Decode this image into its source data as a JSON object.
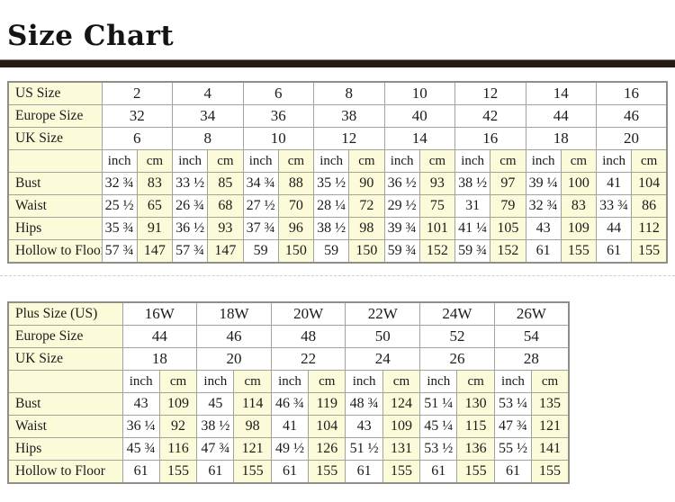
{
  "title": "Size Chart",
  "colors": {
    "header_bar": "#251a15",
    "label_and_cm_cell_background": "#fbfbd9",
    "inch_cell_background": "#ffffff",
    "grid_border": "#a3a39a",
    "outer_border": "#8f8f87",
    "text": "#1b1b1b"
  },
  "tables": [
    {
      "id": "standard",
      "size_rows": [
        {
          "label": "US Size",
          "values": [
            "2",
            "4",
            "6",
            "8",
            "10",
            "12",
            "14",
            "16"
          ]
        },
        {
          "label": "Europe Size",
          "values": [
            "32",
            "34",
            "36",
            "38",
            "40",
            "42",
            "44",
            "46"
          ]
        },
        {
          "label": "UK Size",
          "values": [
            "6",
            "8",
            "10",
            "12",
            "14",
            "16",
            "18",
            "20"
          ]
        }
      ],
      "unit_labels": {
        "inch": "inch",
        "cm": "cm"
      },
      "measure_rows": [
        {
          "label": "Bust",
          "inch": [
            "32 ¾",
            "33 ½",
            "34 ¾",
            "35 ½",
            "36 ½",
            "38 ½",
            "39 ¼",
            "41"
          ],
          "cm": [
            "83",
            "85",
            "88",
            "90",
            "93",
            "97",
            "100",
            "104"
          ]
        },
        {
          "label": "Waist",
          "inch": [
            "25 ½",
            "26 ¾",
            "27 ½",
            "28 ¼",
            "29 ½",
            "31",
            "32 ¾",
            "33 ¾"
          ],
          "cm": [
            "65",
            "68",
            "70",
            "72",
            "75",
            "79",
            "83",
            "86"
          ]
        },
        {
          "label": "Hips",
          "inch": [
            "35 ¾",
            "36 ½",
            "37 ¾",
            "38 ½",
            "39 ¾",
            "41 ¼",
            "43",
            "44"
          ],
          "cm": [
            "91",
            "93",
            "96",
            "98",
            "101",
            "105",
            "109",
            "112"
          ]
        },
        {
          "label": "Hollow to Floor",
          "inch": [
            "57 ¾",
            "57 ¾",
            "59",
            "59",
            "59 ¾",
            "59 ¾",
            "61",
            "61"
          ],
          "cm": [
            "147",
            "147",
            "150",
            "150",
            "152",
            "152",
            "155",
            "155"
          ]
        }
      ]
    },
    {
      "id": "plus",
      "size_rows": [
        {
          "label": "Plus Size (US)",
          "values": [
            "16W",
            "18W",
            "20W",
            "22W",
            "24W",
            "26W"
          ]
        },
        {
          "label": "Europe Size",
          "values": [
            "44",
            "46",
            "48",
            "50",
            "52",
            "54"
          ]
        },
        {
          "label": "UK Size",
          "values": [
            "18",
            "20",
            "22",
            "24",
            "26",
            "28"
          ]
        }
      ],
      "unit_labels": {
        "inch": "inch",
        "cm": "cm"
      },
      "measure_rows": [
        {
          "label": "Bust",
          "inch": [
            "43",
            "45",
            "46 ¾",
            "48 ¾",
            "51 ¼",
            "53 ¼"
          ],
          "cm": [
            "109",
            "114",
            "119",
            "124",
            "130",
            "135"
          ]
        },
        {
          "label": "Waist",
          "inch": [
            "36 ¼",
            "38 ½",
            "41",
            "43",
            "45 ¼",
            "47 ¾"
          ],
          "cm": [
            "92",
            "98",
            "104",
            "109",
            "115",
            "121"
          ]
        },
        {
          "label": "Hips",
          "inch": [
            "45 ¾",
            "47 ¾",
            "49 ½",
            "51 ½",
            "53 ½",
            "55 ½"
          ],
          "cm": [
            "116",
            "121",
            "126",
            "131",
            "136",
            "141"
          ]
        },
        {
          "label": "Hollow to Floor",
          "inch": [
            "61",
            "61",
            "61",
            "61",
            "61",
            "61"
          ],
          "cm": [
            "155",
            "155",
            "155",
            "155",
            "155",
            "155"
          ]
        }
      ]
    }
  ]
}
